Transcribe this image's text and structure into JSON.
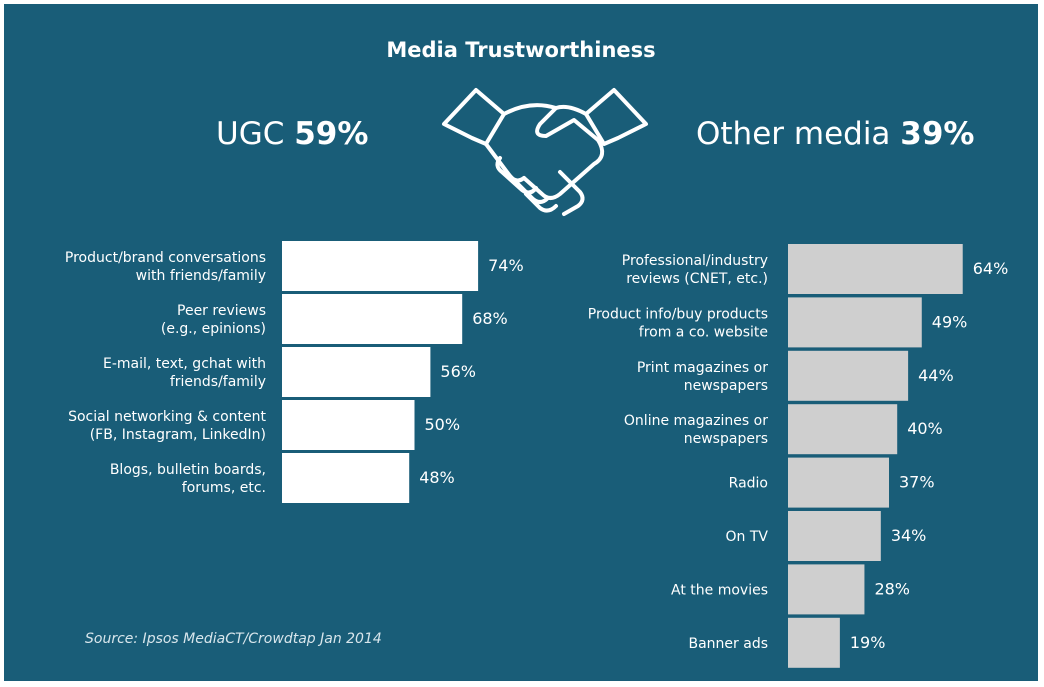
{
  "title": "Media Trustworthiness",
  "ugc": {
    "label": "UGC",
    "value": "59%"
  },
  "other": {
    "label": "Other media",
    "value": "39%"
  },
  "source": "Source: Ipsos MediaCT/Crowdtap Jan 2014",
  "colors": {
    "background": "#195d78",
    "ugc_bar": "#ffffff",
    "other_bar": "#cfcfcf",
    "text": "#ffffff"
  },
  "icon": "handshake-icon",
  "chart_data": [
    {
      "type": "bar",
      "orientation": "horizontal",
      "series": [
        {
          "name": "UGC",
          "values": [
            74,
            68,
            56,
            50,
            48
          ]
        }
      ],
      "categories": [
        [
          "Product/brand conversations",
          "with friends/family"
        ],
        [
          "Peer reviews",
          "(e.g., epinions)"
        ],
        [
          "E-mail, text, gchat with",
          "friends/family"
        ],
        [
          "Social networking & content",
          "(FB, Instagram, LinkedIn)"
        ],
        [
          "Blogs, bulletin boards,",
          "forums, etc."
        ]
      ],
      "value_labels": [
        "74%",
        "68%",
        "56%",
        "50%",
        "48%"
      ],
      "unit": "%"
    },
    {
      "type": "bar",
      "orientation": "horizontal",
      "series": [
        {
          "name": "Other media",
          "values": [
            64,
            49,
            44,
            40,
            37,
            34,
            28,
            19
          ]
        }
      ],
      "categories": [
        [
          "Professional/industry",
          "reviews (CNET, etc.)"
        ],
        [
          "Product info/buy products",
          "from a co. website"
        ],
        [
          "Print magazines or",
          "newspapers"
        ],
        [
          "Online magazines or",
          "newspapers"
        ],
        [
          "Radio"
        ],
        [
          "On TV"
        ],
        [
          "At the movies"
        ],
        [
          "Banner ads"
        ]
      ],
      "value_labels": [
        "64%",
        "49%",
        "44%",
        "40%",
        "37%",
        "34%",
        "28%",
        "19%"
      ],
      "unit": "%"
    }
  ]
}
